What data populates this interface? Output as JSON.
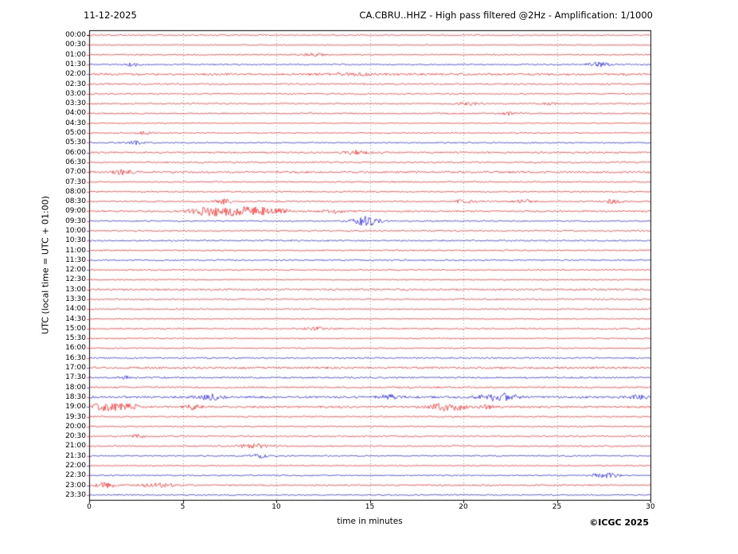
{
  "header": {
    "date": "11-12-2025",
    "title": "CA.CBRU..HHZ - High pass filtered @2Hz - Amplification: 1/1000"
  },
  "axes": {
    "y_label": "UTC (local time = UTC + 01:00)",
    "x_label": "time in minutes",
    "x_ticks": [
      0,
      5,
      10,
      15,
      20,
      25,
      30
    ],
    "x_min": 0,
    "x_max": 30,
    "grid_minutes": [
      5,
      10,
      15,
      20,
      25
    ]
  },
  "footer": {
    "copyright": "©ICGC 2025"
  },
  "colors": {
    "red": "#ff0000",
    "blue": "#0000ee",
    "grid": "#9a9a9a",
    "axis": "#000000"
  },
  "chart_data": {
    "type": "line",
    "subtype": "helicorder-seismogram",
    "title": "CA.CBRU..HHZ - High pass filtered @2Hz - Amplification: 1/1000",
    "date": "11-12-2025",
    "xlabel": "time in minutes",
    "ylabel": "UTC (local time = UTC + 01:00)",
    "xlim": [
      0,
      30
    ],
    "minutes_per_row": 30,
    "row_count": 48,
    "legend": "none",
    "grid": "vertical-dotted",
    "note": "Continuous seismic noise traces; events listed as [start_minute, relative_amplitude_px, width_minutes]",
    "rows": [
      {
        "label": "00:00",
        "color": "red",
        "noise": 0.8,
        "events": []
      },
      {
        "label": "00:30",
        "color": "red",
        "noise": 0.7,
        "events": []
      },
      {
        "label": "01:00",
        "color": "red",
        "noise": 0.9,
        "events": [
          [
            12.0,
            1.5,
            0.5
          ]
        ]
      },
      {
        "label": "01:30",
        "color": "blue",
        "noise": 1.0,
        "events": [
          [
            2.3,
            1.8,
            0.3
          ],
          [
            27.2,
            2.8,
            0.4
          ]
        ]
      },
      {
        "label": "02:00",
        "color": "red",
        "noise": 1.4,
        "events": [
          [
            14.0,
            1.5,
            0.8
          ]
        ]
      },
      {
        "label": "02:30",
        "color": "red",
        "noise": 1.0,
        "events": []
      },
      {
        "label": "03:00",
        "color": "red",
        "noise": 0.8,
        "events": []
      },
      {
        "label": "03:30",
        "color": "red",
        "noise": 0.9,
        "events": [
          [
            20.2,
            1.8,
            0.4
          ],
          [
            24.5,
            1.5,
            0.3
          ]
        ]
      },
      {
        "label": "04:00",
        "color": "red",
        "noise": 0.9,
        "events": [
          [
            22.4,
            1.8,
            0.3
          ]
        ]
      },
      {
        "label": "04:30",
        "color": "red",
        "noise": 0.7,
        "events": []
      },
      {
        "label": "05:00",
        "color": "red",
        "noise": 0.8,
        "events": [
          [
            3.0,
            1.5,
            0.3
          ]
        ]
      },
      {
        "label": "05:30",
        "color": "blue",
        "noise": 0.9,
        "events": [
          [
            2.4,
            2.2,
            0.3
          ]
        ]
      },
      {
        "label": "06:00",
        "color": "red",
        "noise": 1.1,
        "events": [
          [
            14.3,
            2.2,
            0.4
          ]
        ]
      },
      {
        "label": "06:30",
        "color": "red",
        "noise": 1.0,
        "events": []
      },
      {
        "label": "07:00",
        "color": "red",
        "noise": 1.3,
        "events": [
          [
            1.8,
            2.6,
            0.4
          ]
        ]
      },
      {
        "label": "07:30",
        "color": "red",
        "noise": 0.9,
        "events": []
      },
      {
        "label": "08:00",
        "color": "red",
        "noise": 0.9,
        "events": []
      },
      {
        "label": "08:30",
        "color": "red",
        "noise": 1.0,
        "events": [
          [
            7.2,
            2.6,
            0.3
          ],
          [
            20.0,
            2.2,
            0.3
          ],
          [
            23.2,
            2.2,
            0.3
          ],
          [
            28.0,
            2.6,
            0.3
          ]
        ]
      },
      {
        "label": "09:00",
        "color": "red",
        "noise": 1.1,
        "events": [
          [
            6.0,
            3.5,
            0.6
          ],
          [
            7.3,
            4.5,
            0.8
          ],
          [
            8.9,
            4.5,
            0.7
          ],
          [
            10.2,
            2.6,
            0.4
          ],
          [
            13.1,
            2.2,
            0.4
          ]
        ]
      },
      {
        "label": "09:30",
        "color": "blue",
        "noise": 0.9,
        "events": [
          [
            14.6,
            5.0,
            0.4
          ],
          [
            15.3,
            2.6,
            0.4
          ]
        ]
      },
      {
        "label": "10:00",
        "color": "red",
        "noise": 0.9,
        "events": []
      },
      {
        "label": "10:30",
        "color": "blue",
        "noise": 1.0,
        "events": []
      },
      {
        "label": "11:00",
        "color": "red",
        "noise": 0.9,
        "events": []
      },
      {
        "label": "11:30",
        "color": "blue",
        "noise": 1.0,
        "events": []
      },
      {
        "label": "12:00",
        "color": "red",
        "noise": 0.9,
        "events": []
      },
      {
        "label": "12:30",
        "color": "red",
        "noise": 0.8,
        "events": []
      },
      {
        "label": "13:00",
        "color": "red",
        "noise": 1.2,
        "events": []
      },
      {
        "label": "13:30",
        "color": "red",
        "noise": 0.9,
        "events": []
      },
      {
        "label": "14:00",
        "color": "red",
        "noise": 0.9,
        "events": []
      },
      {
        "label": "14:30",
        "color": "red",
        "noise": 0.8,
        "events": []
      },
      {
        "label": "15:00",
        "color": "red",
        "noise": 1.0,
        "events": [
          [
            12.2,
            1.6,
            0.4
          ]
        ]
      },
      {
        "label": "15:30",
        "color": "red",
        "noise": 0.8,
        "events": []
      },
      {
        "label": "16:00",
        "color": "red",
        "noise": 0.8,
        "events": []
      },
      {
        "label": "16:30",
        "color": "blue",
        "noise": 1.0,
        "events": []
      },
      {
        "label": "17:00",
        "color": "red",
        "noise": 1.3,
        "events": []
      },
      {
        "label": "17:30",
        "color": "blue",
        "noise": 1.1,
        "events": [
          [
            2.1,
            1.8,
            0.3
          ]
        ]
      },
      {
        "label": "18:00",
        "color": "red",
        "noise": 1.1,
        "events": []
      },
      {
        "label": "18:30",
        "color": "blue",
        "noise": 1.5,
        "events": [
          [
            6.5,
            3.0,
            0.5
          ],
          [
            16.0,
            2.6,
            0.4
          ],
          [
            21.6,
            3.2,
            0.6
          ],
          [
            22.4,
            2.8,
            0.4
          ],
          [
            29.4,
            2.6,
            0.3
          ]
        ]
      },
      {
        "label": "19:00",
        "color": "red",
        "noise": 1.3,
        "events": [
          [
            0.6,
            3.2,
            0.4
          ],
          [
            1.5,
            3.2,
            0.5
          ],
          [
            2.3,
            2.6,
            0.3
          ],
          [
            5.6,
            2.8,
            0.3
          ],
          [
            18.9,
            3.6,
            0.6
          ],
          [
            19.6,
            2.8,
            0.4
          ],
          [
            21.2,
            2.6,
            0.3
          ]
        ]
      },
      {
        "label": "19:30",
        "color": "red",
        "noise": 0.9,
        "events": []
      },
      {
        "label": "20:00",
        "color": "red",
        "noise": 0.8,
        "events": []
      },
      {
        "label": "20:30",
        "color": "red",
        "noise": 0.9,
        "events": [
          [
            2.6,
            1.8,
            0.3
          ]
        ]
      },
      {
        "label": "21:00",
        "color": "red",
        "noise": 0.9,
        "events": [
          [
            8.8,
            3.0,
            0.5
          ]
        ]
      },
      {
        "label": "21:30",
        "color": "blue",
        "noise": 0.9,
        "events": [
          [
            9.1,
            2.2,
            0.3
          ]
        ]
      },
      {
        "label": "22:00",
        "color": "red",
        "noise": 0.8,
        "events": []
      },
      {
        "label": "22:30",
        "color": "blue",
        "noise": 0.9,
        "events": [
          [
            27.6,
            3.0,
            0.5
          ]
        ]
      },
      {
        "label": "23:00",
        "color": "red",
        "noise": 1.0,
        "events": [
          [
            0.9,
            2.8,
            0.4
          ],
          [
            3.3,
            2.2,
            0.5
          ],
          [
            4.1,
            1.8,
            0.3
          ]
        ]
      },
      {
        "label": "23:30",
        "color": "blue",
        "noise": 0.9,
        "events": []
      }
    ]
  }
}
